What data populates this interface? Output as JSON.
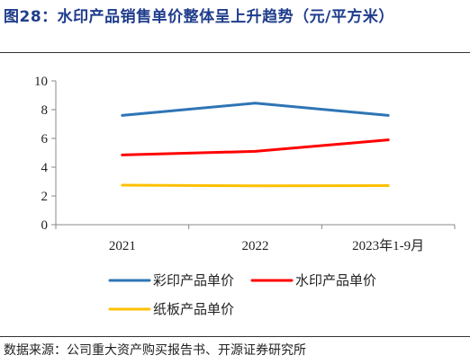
{
  "figure": {
    "title": "图28：水印产品销售单价整体呈上升趋势（元/平方米）",
    "source": "数据来源：公司重大资产购买报告书、开源证券研究所"
  },
  "chart_data": {
    "type": "line",
    "categories": [
      "2021",
      "2022",
      "2023年1-9月"
    ],
    "series": [
      {
        "name": "彩印产品单价",
        "values": [
          7.6,
          8.45,
          7.6
        ],
        "color": "#2e75b6"
      },
      {
        "name": "水印产品单价",
        "values": [
          4.85,
          5.1,
          5.9
        ],
        "color": "#ff0000"
      },
      {
        "name": "纸板产品单价",
        "values": [
          2.75,
          2.7,
          2.72
        ],
        "color": "#ffc000"
      }
    ],
    "ylim": [
      0,
      10
    ],
    "yticks": [
      0,
      2,
      4,
      6,
      8,
      10
    ],
    "grid": false,
    "legend": "bottom"
  }
}
